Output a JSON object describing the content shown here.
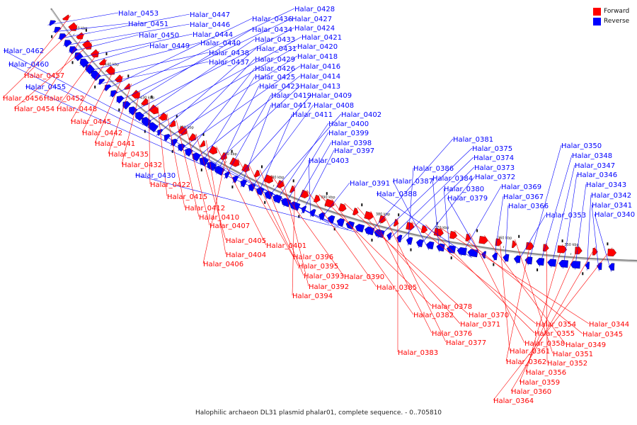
{
  "colors": {
    "forward": "#ff0000",
    "reverse": "#0000ff",
    "backbone": "#8a8a8a"
  },
  "legend": {
    "forward": "Forward",
    "reverse": "Reverse"
  },
  "caption": "Halophilic archaeon DL31 plasmid phalar01, complete sequence. - 0..705810",
  "ticks": [
    "450 kbp",
    "440 kbp",
    "430 kbp",
    "420 kbp",
    "410 kbp",
    "400 kbp",
    "390 kbp",
    "380 kbp",
    "370 kbp",
    "360 kbp",
    "350 kbp"
  ],
  "reverse_genes": [
    "Halar_0453",
    "Halar_0451",
    "Halar_0447",
    "Halar_0446",
    "Halar_0450",
    "Halar_0444",
    "Halar_0449",
    "Halar_0440",
    "Halar_0438",
    "Halar_0437",
    "Halar_0436",
    "Halar_0428",
    "Halar_0427",
    "Halar_0434",
    "Halar_0424",
    "Halar_0433",
    "Halar_0421",
    "Halar_0420",
    "Halar_0431",
    "Halar_0418",
    "Halar_0429",
    "Halar_0416",
    "Halar_0426",
    "Halar_0414",
    "Halar_0425",
    "Halar_0413",
    "Halar_0423",
    "Halar_0419",
    "Halar_0409",
    "Halar_0417",
    "Halar_0408",
    "Halar_0411",
    "Halar_0402",
    "Halar_0400",
    "Halar_0399",
    "Halar_0398",
    "Halar_0397",
    "Halar_0403",
    "Halar_0391",
    "Halar_0462",
    "Halar_0460",
    "Halar_0455",
    "Halar_0430",
    "Halar_0381",
    "Halar_0375",
    "Halar_0374",
    "Halar_0373",
    "Halar_0386",
    "Halar_0372",
    "Halar_0387",
    "Halar_0384",
    "Halar_0380",
    "Halar_0369",
    "Halar_0388",
    "Halar_0379",
    "Halar_0367",
    "Halar_0366",
    "Halar_0353",
    "Halar_0350",
    "Halar_0348",
    "Halar_0347",
    "Halar_0346",
    "Halar_0343",
    "Halar_0342",
    "Halar_0341",
    "Halar_0340"
  ],
  "forward_genes": [
    "Halar_0457",
    "Halar_0456",
    "Halar_0452",
    "Halar_0454",
    "Halar_0448",
    "Halar_0445",
    "Halar_0442",
    "Halar_0441",
    "Halar_0435",
    "Halar_0432",
    "Halar_0422",
    "Halar_0415",
    "Halar_0412",
    "Halar_0410",
    "Halar_0407",
    "Halar_0405",
    "Halar_0404",
    "Halar_0401",
    "Halar_0406",
    "Halar_0396",
    "Halar_0395",
    "Halar_0393",
    "Halar_0390",
    "Halar_0392",
    "Halar_0394",
    "Halar_0385",
    "Halar_0378",
    "Halar_0382",
    "Halar_0370",
    "Halar_0371",
    "Halar_0376",
    "Halar_0377",
    "Halar_0383",
    "Halar_0354",
    "Halar_0355",
    "Halar_0344",
    "Halar_0345",
    "Halar_0358",
    "Halar_0349",
    "Halar_0361",
    "Halar_0351",
    "Halar_0362",
    "Halar_0352",
    "Halar_0356",
    "Halar_0359",
    "Halar_0360",
    "Halar_0364"
  ]
}
